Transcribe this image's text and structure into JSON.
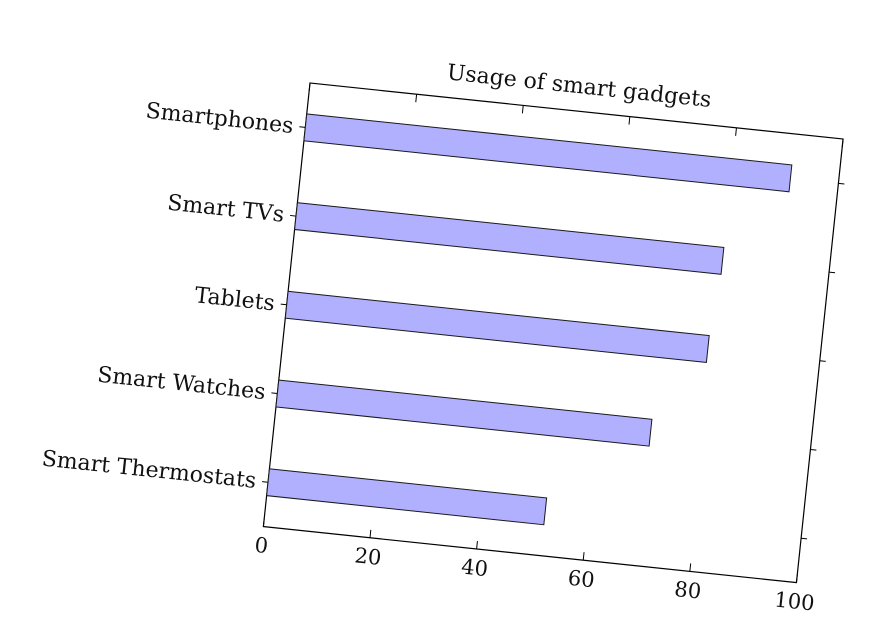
{
  "chart_data": {
    "type": "bar",
    "orientation": "horizontal",
    "title": "Usage of smart gadgets",
    "categories": [
      "Smartphones",
      "Smart TVs",
      "Tablets",
      "Smart Watches",
      "Smart Thermostats"
    ],
    "values": [
      91,
      80,
      79,
      70,
      52
    ],
    "xlim": [
      0,
      100
    ],
    "x_ticks": [
      0,
      20,
      40,
      60,
      80,
      100
    ],
    "xlabel": "",
    "ylabel": "",
    "grid": false,
    "colors": {
      "bar_fill": "#b0b0ff",
      "bar_stroke": "#1a1a1a",
      "axis": "#000000"
    }
  }
}
